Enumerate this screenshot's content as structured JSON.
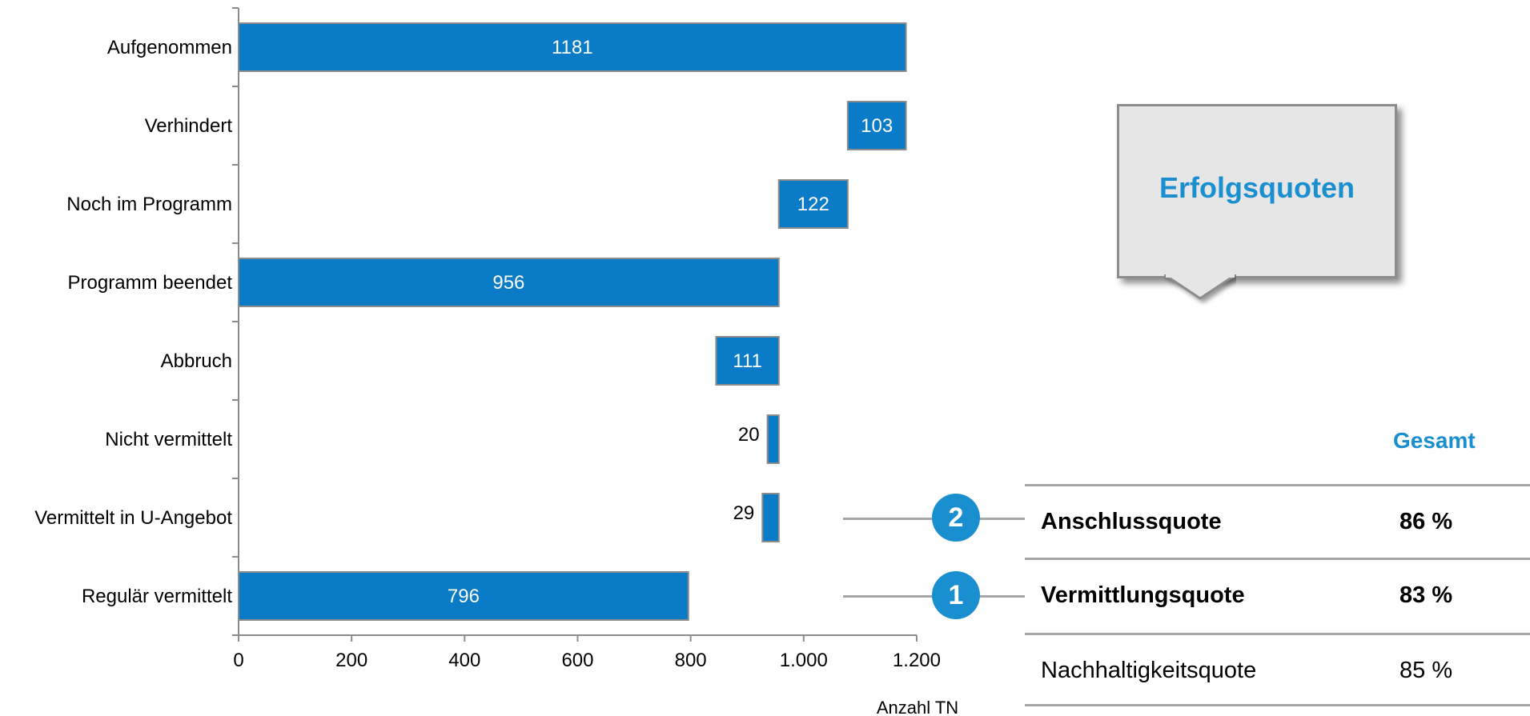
{
  "chart_data": {
    "type": "bar",
    "orientation": "horizontal-waterfall",
    "categories": [
      "Aufgenommen",
      "Verhindert",
      "Noch im Programm",
      "Programm beendet",
      "Abbruch",
      "Nicht vermittelt",
      "Vermittelt in U-Angebot",
      "Regulär vermittelt"
    ],
    "bars": [
      {
        "start": 0,
        "end": 1181,
        "label": "1181"
      },
      {
        "start": 1078,
        "end": 1181,
        "label": "103"
      },
      {
        "start": 956,
        "end": 1078,
        "label": "122"
      },
      {
        "start": 0,
        "end": 956,
        "label": "956"
      },
      {
        "start": 845,
        "end": 956,
        "label": "111"
      },
      {
        "start": 936,
        "end": 956,
        "label": "20"
      },
      {
        "start": 927,
        "end": 956,
        "label": "29"
      },
      {
        "start": 0,
        "end": 796,
        "label": "796"
      }
    ],
    "xticks": [
      "0",
      "200",
      "400",
      "600",
      "800",
      "1.000",
      "1.200"
    ],
    "xlim": [
      0,
      1200
    ],
    "xlabel": "Anzahl TN",
    "bar_color": "#0a7bc6"
  },
  "callout": {
    "title": "Erfolgsquoten"
  },
  "table": {
    "header": "Gesamt",
    "rows": [
      {
        "badge": "2",
        "name": "Anschlussquote",
        "value": "86 %"
      },
      {
        "badge": "1",
        "name": "Vermittlungsquote",
        "value": "83 %"
      },
      {
        "name": "Nachhaltigkeitsquote",
        "value": "85 %"
      }
    ]
  },
  "colors": {
    "accent": "#1a8fd0",
    "bar": "#0a7bc6",
    "lines": "#a6a6a6",
    "callout_bg": "#e6e6e6"
  }
}
